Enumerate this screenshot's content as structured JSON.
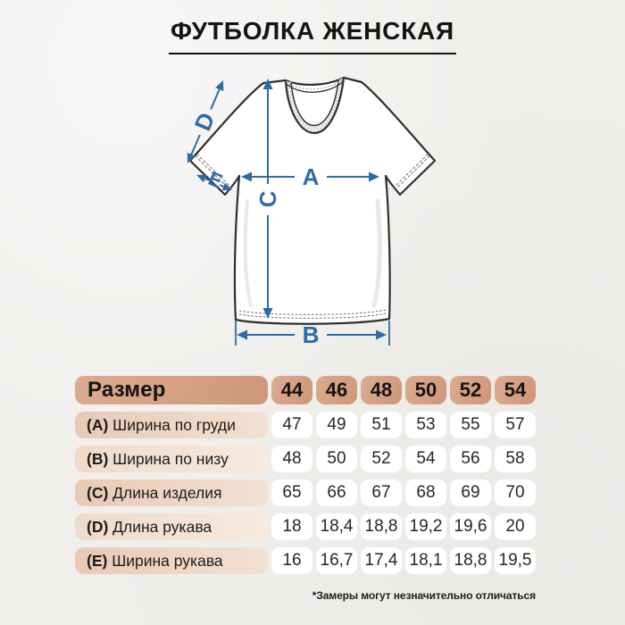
{
  "title": "ФУТБОЛКА ЖЕНСКАЯ",
  "diagram": {
    "arrow_color": "#2d6ca6",
    "labels": {
      "a": "A",
      "b": "B",
      "c": "C",
      "d": "D",
      "e": "E"
    }
  },
  "table": {
    "header_label": "Размер",
    "sizes": [
      "44",
      "46",
      "48",
      "50",
      "52",
      "54"
    ],
    "rows": [
      {
        "key": "(A)",
        "label": "Ширина по груди",
        "values": [
          "47",
          "49",
          "51",
          "53",
          "55",
          "57"
        ]
      },
      {
        "key": "(B)",
        "label": "Ширина по низу",
        "values": [
          "48",
          "50",
          "52",
          "54",
          "56",
          "58"
        ]
      },
      {
        "key": "(C)",
        "label": "Длина изделия",
        "values": [
          "65",
          "66",
          "67",
          "68",
          "69",
          "70"
        ]
      },
      {
        "key": "(D)",
        "label": "Длина рукава",
        "values": [
          "18",
          "18,4",
          "18,8",
          "19,2",
          "19,6",
          "20"
        ]
      },
      {
        "key": "(E)",
        "label": "Ширина рукава",
        "values": [
          "16",
          "16,7",
          "17,4",
          "18,1",
          "18,8",
          "19,5"
        ]
      }
    ]
  },
  "footer_note": "*Замеры могут незначительно отличаться",
  "colors": {
    "background": "#f0efec",
    "arrow_blue": "#2d6ca6",
    "header_tan": "#d5a084",
    "label_peach": "#eed5c2",
    "outline": "#2f2f2f"
  }
}
